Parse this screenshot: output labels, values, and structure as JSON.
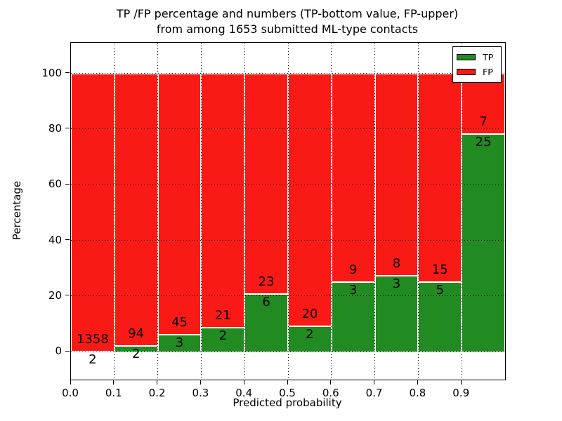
{
  "title": {
    "line1": "TP /FP percentage and numbers (TP-bottom value, FP-upper)",
    "line2": "from among 1653 submitted ML-type contacts"
  },
  "chart_data": {
    "type": "bar",
    "stacked": true,
    "normalized": "each bin stacked to 100%",
    "title": "TP /FP percentage and numbers (TP-bottom value, FP-upper) from among 1653 submitted ML-type contacts",
    "xlabel": "Predicted probability",
    "ylabel": "Percentage",
    "total_contacts": 1653,
    "bin_edges": [
      0.0,
      0.1,
      0.2,
      0.3,
      0.4,
      0.5,
      0.6,
      0.7,
      0.8,
      0.9,
      1.0
    ],
    "series": [
      {
        "name": "TP",
        "color": "#218a21",
        "counts": [
          2,
          2,
          3,
          2,
          6,
          2,
          3,
          3,
          5,
          25
        ]
      },
      {
        "name": "FP",
        "color": "#fa1a15",
        "counts": [
          1358,
          94,
          45,
          21,
          23,
          20,
          9,
          8,
          15,
          7
        ]
      }
    ],
    "tp_percent": [
      0.15,
      2.08,
      6.25,
      8.7,
      20.69,
      9.09,
      25.0,
      27.27,
      25.0,
      78.13
    ],
    "annotation_note": "FP count printed above TP/FP boundary, TP count below",
    "xticks": [
      "0.0",
      "0.1",
      "0.2",
      "0.3",
      "0.4",
      "0.5",
      "0.6",
      "0.7",
      "0.8",
      "0.9"
    ],
    "yticks": [
      0,
      20,
      40,
      60,
      80,
      100
    ],
    "xlim": [
      0.0,
      1.0
    ],
    "ylim": [
      -10,
      111
    ],
    "grid": "dotted black, x at every 0.1, y at every 20",
    "legend": {
      "position": "upper right",
      "entries": [
        {
          "label": "TP",
          "color": "#218a21"
        },
        {
          "label": "FP",
          "color": "#fa1a15"
        }
      ]
    }
  }
}
